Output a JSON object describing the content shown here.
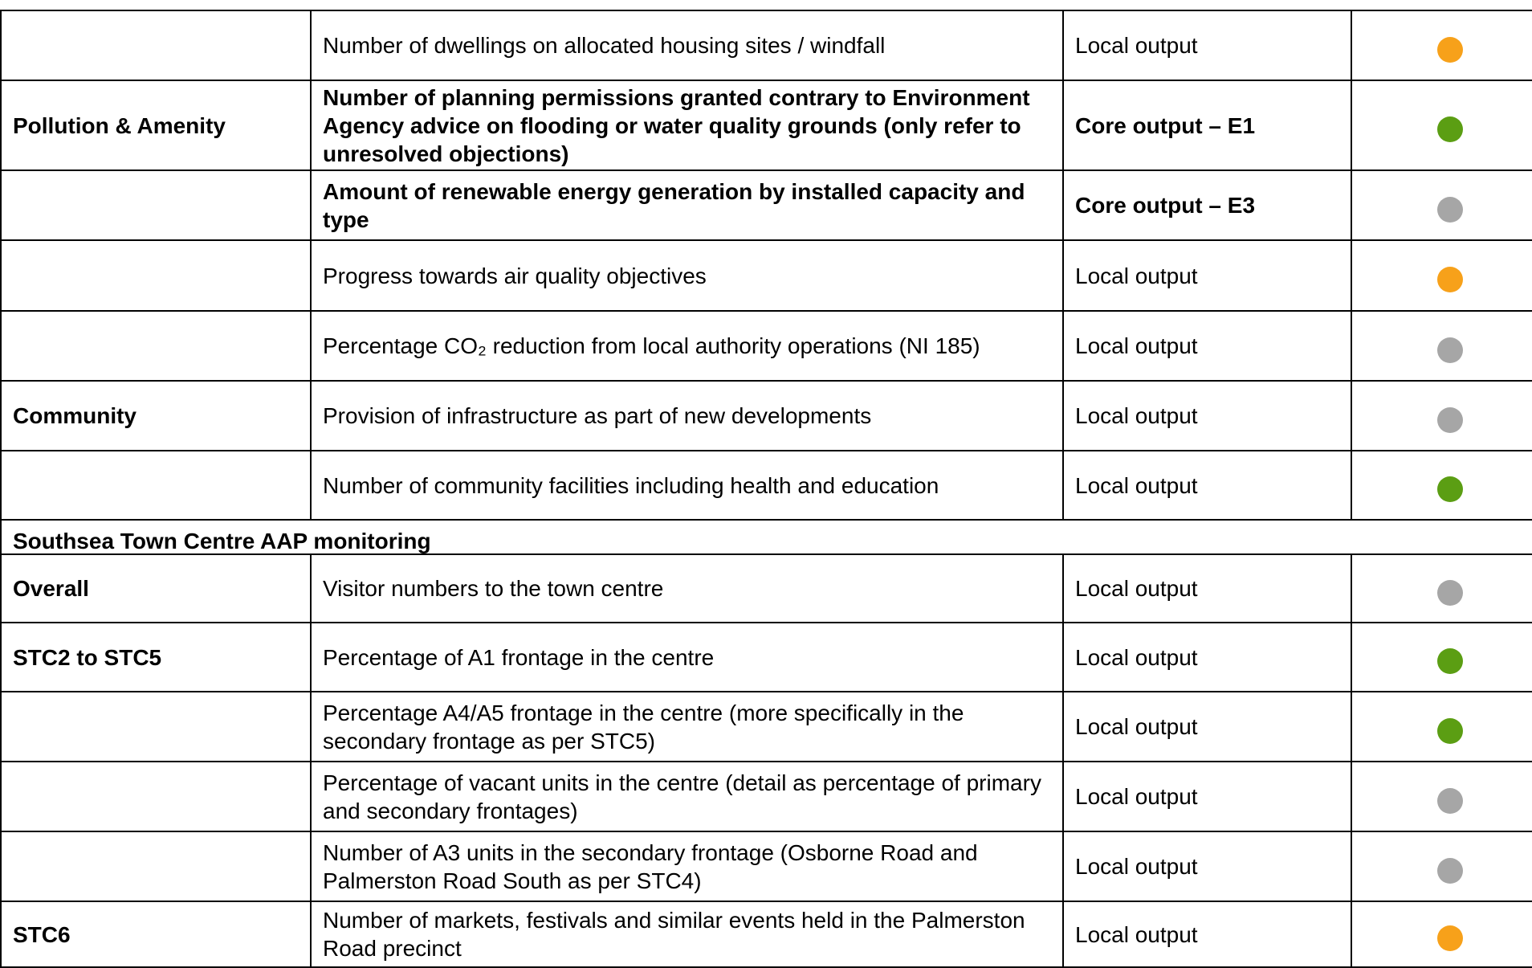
{
  "table": {
    "rows": [
      {
        "topic": "",
        "indicator": "Number of dwellings on allocated housing sites / windfall",
        "type": "Local output",
        "status": "#f7a11a",
        "bold": false
      },
      {
        "topic": "Pollution & Amenity",
        "indicator": "Number of planning permissions granted contrary to Environment Agency advice on flooding or water quality grounds (only refer to unresolved objections)",
        "type": "Core output – E1",
        "status": "#5b9e13",
        "bold": true
      },
      {
        "topic": "",
        "indicator": "Amount of renewable energy generation by installed capacity and type",
        "type": "Core output – E3",
        "status": "#a6a6a6",
        "bold": true
      },
      {
        "topic": "",
        "indicator": "Progress towards air quality objectives",
        "type": "Local output",
        "status": "#f7a11a",
        "bold": false
      },
      {
        "topic": "",
        "indicator": "Percentage CO₂ reduction from local authority operations (NI 185)",
        "type": "Local output",
        "status": "#a6a6a6",
        "bold": false
      },
      {
        "topic": "Community",
        "indicator": "Provision of infrastructure as part of new developments",
        "type": "Local output",
        "status": "#a6a6a6",
        "bold": false
      },
      {
        "topic": "",
        "indicator": "Number of community facilities including health and education",
        "type": "Local output",
        "status": "#5b9e13",
        "bold": false
      },
      {
        "section": "Southsea Town Centre AAP monitoring"
      },
      {
        "topic": "Overall",
        "indicator": "Visitor numbers to the town centre",
        "type": "Local output",
        "status": "#a6a6a6",
        "bold": false
      },
      {
        "topic": "STC2 to STC5",
        "indicator": "Percentage of A1 frontage in the centre",
        "type": "Local output",
        "status": "#5b9e13",
        "bold": false
      },
      {
        "topic": "",
        "indicator": "Percentage A4/A5 frontage in the centre (more specifically in the secondary frontage as per STC5)",
        "type": "Local output",
        "status": "#5b9e13",
        "bold": false
      },
      {
        "topic": "",
        "indicator": "Percentage of vacant units in the centre (detail as percentage of primary and secondary frontages)",
        "type": "Local output",
        "status": "#a6a6a6",
        "bold": false
      },
      {
        "topic": "",
        "indicator": "Number of A3 units in the secondary frontage (Osborne Road and Palmerston Road South as per STC4)",
        "type": "Local output",
        "status": "#a6a6a6",
        "bold": false
      },
      {
        "topic": "STC6",
        "indicator": "Number of markets, festivals and similar events held in the Palmerston Road precinct",
        "type": "Local output",
        "status": "#f7a11a",
        "bold": false
      }
    ]
  }
}
